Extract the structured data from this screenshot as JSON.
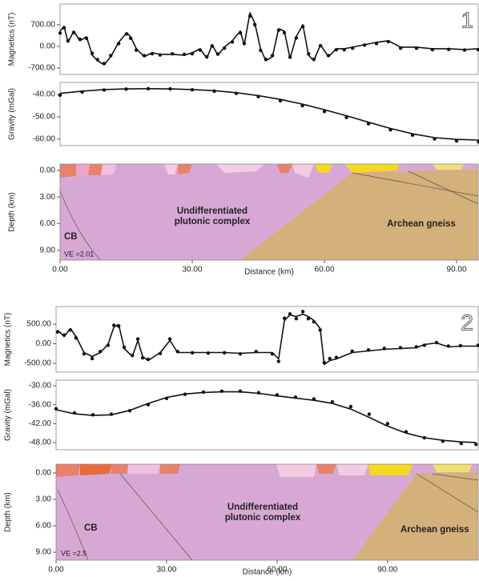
{
  "chart_data": [
    {
      "type": "line",
      "label": "1",
      "ylabel": "Magnetics (nT)",
      "xlim": [
        0,
        94.9
      ],
      "ylim": [
        -910,
        1370
      ],
      "yticks": [
        {
          "value": 700,
          "label": "700.00"
        },
        {
          "value": 0,
          "label": "0.00"
        },
        {
          "value": -700,
          "label": "-700.00"
        }
      ],
      "x": [
        0,
        0.9,
        1.8,
        3.1,
        4.5,
        6.0,
        7.3,
        8.5,
        10.0,
        11.5,
        13.3,
        15.1,
        16.0,
        17.3,
        19.1,
        20.9,
        22.7,
        25.5,
        28.2,
        30.0,
        31.8,
        33.3,
        34.5,
        35.8,
        37.3,
        39.1,
        40.9,
        41.8,
        43.1,
        44.2,
        45.5,
        46.7,
        48.2,
        49.6,
        50.9,
        52.2,
        53.6,
        55.1,
        56.4,
        57.6,
        59.1,
        60.9,
        62.7,
        64.5,
        66.4,
        69.1,
        71.8,
        74.5,
        77.3,
        80.9,
        84.5,
        88.2,
        91.8,
        94.9
      ],
      "series": [
        {
          "color": "#111111",
          "marker": "dot",
          "values": [
            430,
            600,
            180,
            450,
            230,
            260,
            -230,
            -430,
            -560,
            -300,
            90,
            400,
            260,
            -120,
            -300,
            -240,
            -280,
            -240,
            -260,
            -240,
            -120,
            -340,
            10,
            -250,
            -60,
            140,
            440,
            90,
            980,
            700,
            -130,
            -420,
            -300,
            520,
            440,
            -350,
            270,
            640,
            -240,
            -420,
            20,
            -300,
            -110,
            -110,
            -60,
            40,
            90,
            150,
            -60,
            -60,
            -110,
            -100,
            -120,
            -110
          ]
        },
        {
          "color": "#111111",
          "marker": "none",
          "values": [
            492,
            648,
            130,
            492,
            181,
            311,
            -285,
            -466,
            -596,
            -337,
            130,
            440,
            311,
            -78,
            -337,
            -207,
            -259,
            -259,
            -285,
            -207,
            -78,
            -389,
            52,
            -285,
            -26,
            181,
            492,
            52,
            1088,
            751,
            -78,
            -466,
            -337,
            570,
            492,
            -389,
            311,
            699,
            -285,
            -466,
            52,
            -337,
            -78,
            -78,
            -26,
            52,
            130,
            181,
            -26,
            -26,
            -78,
            -78,
            -104,
            -78
          ]
        }
      ]
    },
    {
      "type": "line",
      "ylabel": "Gravity (mGal)",
      "xlim": [
        0,
        94.9
      ],
      "ylim": [
        -62.9,
        -34.6
      ],
      "yticks": [
        {
          "value": -40,
          "label": "-40.00"
        },
        {
          "value": -50,
          "label": "-50.00"
        },
        {
          "value": -60,
          "label": "-60.00"
        }
      ],
      "x": [
        0,
        5,
        10,
        15,
        20,
        25,
        30,
        35,
        40,
        45,
        50,
        55,
        60,
        65,
        70,
        75,
        80,
        85,
        90,
        95
      ],
      "series": [
        {
          "color": "#111111",
          "marker": "dot",
          "values": [
            -40.3,
            -38.9,
            -38.0,
            -37.6,
            -37.4,
            -37.5,
            -37.9,
            -38.5,
            -39.5,
            -40.9,
            -42.8,
            -45.0,
            -47.6,
            -50.3,
            -53.1,
            -55.8,
            -58.2,
            -59.9,
            -60.8,
            -61.2
          ]
        },
        {
          "color": "#111111",
          "marker": "none",
          "values": [
            -39.5,
            -38.5,
            -37.8,
            -37.5,
            -37.4,
            -37.5,
            -37.8,
            -38.3,
            -39.2,
            -40.5,
            -42.2,
            -44.3,
            -46.8,
            -49.5,
            -52.4,
            -55.2,
            -57.6,
            -59.3,
            -60.1,
            -60.4
          ]
        }
      ]
    },
    {
      "type": "section",
      "ylabel": "Depth (km)",
      "xlabel": "Distance (km)",
      "xlim": [
        0,
        94.9
      ],
      "ylim": [
        10.1,
        -0.7
      ],
      "yticks": [
        {
          "value": 0,
          "label": "0.00"
        },
        {
          "value": 3,
          "label": "3.00"
        },
        {
          "value": 6,
          "label": "6.00"
        },
        {
          "value": 9,
          "label": "9.00"
        }
      ],
      "xticks": [
        {
          "value": 0,
          "label": "0.00"
        },
        {
          "value": 30,
          "label": "30.00"
        },
        {
          "value": 60,
          "label": "60.00"
        },
        {
          "value": 90,
          "label": "90.00"
        }
      ],
      "annotations": [
        "Undifferentiated",
        "plutonic complex",
        "Archean gneiss",
        "CB",
        "VE =2.01"
      ]
    },
    {
      "type": "line",
      "label": "2",
      "ylabel": "Magnetics (nT)",
      "xlim": [
        0,
        114.6
      ],
      "ylim": [
        -725,
        950
      ],
      "yticks": [
        {
          "value": 500,
          "label": "500.00"
        },
        {
          "value": 0,
          "label": "0.00"
        },
        {
          "value": -500,
          "label": "-500.00"
        }
      ],
      "x": [
        0.4,
        2.2,
        3.9,
        5.4,
        7.6,
        9.8,
        12.0,
        14.1,
        15.7,
        17.0,
        18.5,
        20.7,
        22.2,
        23.5,
        25.0,
        28.3,
        30.9,
        33.0,
        37.0,
        41.3,
        45.7,
        50.0,
        54.3,
        58.7,
        60.4,
        62.0,
        63.5,
        65.2,
        67.0,
        68.5,
        70.0,
        71.7,
        72.8,
        74.3,
        76.1,
        80.4,
        84.8,
        89.1,
        93.5,
        97.8,
        100.0,
        103.3,
        106.5,
        109.8,
        114.6
      ],
      "series": [
        {
          "color": "#111111",
          "marker": "dot",
          "values": [
            300,
            220,
            350,
            150,
            -260,
            -380,
            -200,
            -40,
            470,
            450,
            -90,
            -300,
            120,
            -360,
            -400,
            -250,
            120,
            -200,
            -230,
            -240,
            -230,
            -260,
            -200,
            -260,
            -450,
            650,
            760,
            640,
            820,
            640,
            560,
            350,
            -480,
            -380,
            -350,
            -190,
            -160,
            -120,
            -100,
            -80,
            -40,
            30,
            -60,
            -50,
            -40
          ]
        },
        {
          "color": "#111111",
          "marker": "none",
          "values": [
            347,
            184,
            388,
            184,
            -224,
            -326,
            -224,
            -20,
            428,
            490,
            -122,
            -326,
            82,
            -326,
            -428,
            -224,
            82,
            -224,
            -224,
            -224,
            -224,
            -245,
            -224,
            -224,
            -388,
            592,
            734,
            694,
            755,
            694,
            592,
            388,
            -530,
            -428,
            -388,
            -224,
            -184,
            -143,
            -122,
            -102,
            -20,
            20,
            -82,
            -61,
            -61
          ]
        }
      ]
    },
    {
      "type": "line",
      "ylabel": "Gravity (mGal)",
      "xlim": [
        0,
        114.6
      ],
      "ylim": [
        -50.3,
        -28.2
      ],
      "yticks": [
        {
          "value": -30,
          "label": "-30.00"
        },
        {
          "value": -36,
          "label": "-36.00"
        },
        {
          "value": -42,
          "label": "-42.00"
        },
        {
          "value": -48,
          "label": "-48.00"
        }
      ],
      "x": [
        0,
        5,
        10,
        15,
        20,
        25,
        30,
        35,
        40,
        45,
        50,
        55,
        60,
        65,
        70,
        75,
        80,
        85,
        90,
        95,
        100,
        105,
        110,
        114
      ],
      "series": [
        {
          "color": "#111111",
          "marker": "dot",
          "values": [
            -37.3,
            -38.6,
            -39.2,
            -39.0,
            -37.9,
            -36.0,
            -34.0,
            -32.7,
            -32.0,
            -31.7,
            -31.7,
            -32.2,
            -32.9,
            -33.6,
            -34.2,
            -35.1,
            -36.6,
            -39.0,
            -42.0,
            -44.6,
            -46.5,
            -47.6,
            -48.3,
            -48.6
          ]
        },
        {
          "color": "#111111",
          "marker": "none",
          "values": [
            -37.6,
            -38.9,
            -39.4,
            -39.2,
            -37.8,
            -35.6,
            -33.7,
            -32.6,
            -32.1,
            -31.9,
            -31.9,
            -32.4,
            -33.2,
            -33.9,
            -34.6,
            -35.6,
            -37.4,
            -40.0,
            -42.8,
            -45.0,
            -46.5,
            -47.3,
            -47.8,
            -48.0
          ]
        }
      ]
    },
    {
      "type": "section",
      "ylabel": "Depth (km)",
      "xlabel": "Distance (km)",
      "xlim": [
        0,
        114.6
      ],
      "ylim": [
        9.9,
        -1.0
      ],
      "yticks": [
        {
          "value": 0,
          "label": "0.00"
        },
        {
          "value": 3,
          "label": "3.00"
        },
        {
          "value": 6,
          "label": "6.00"
        },
        {
          "value": 9,
          "label": "9.00"
        }
      ],
      "xticks": [
        {
          "value": 0,
          "label": "0.00"
        },
        {
          "value": 30,
          "label": "30.00"
        },
        {
          "value": 60,
          "label": "60.00"
        },
        {
          "value": 90,
          "label": "90.00"
        }
      ],
      "annotations": [
        "Undifferentiated",
        "plutonic complex",
        "Archean gneiss",
        "CB",
        "VE =2.5"
      ]
    }
  ]
}
